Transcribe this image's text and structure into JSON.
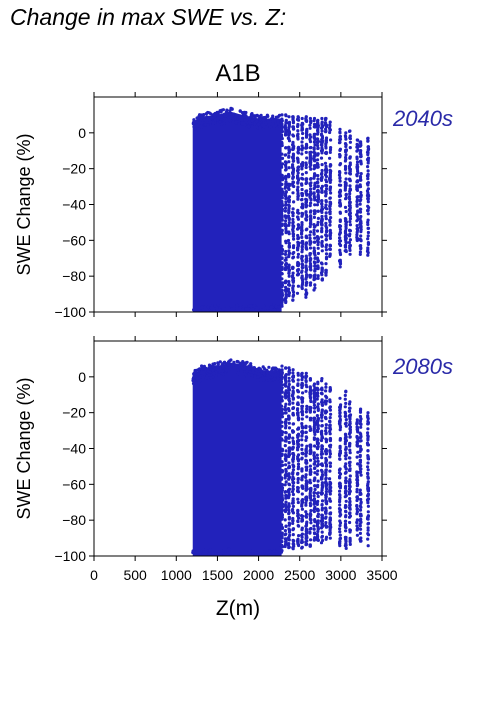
{
  "figure": {
    "title": "Change in max SWE vs. Z:"
  },
  "chart_data": {
    "type": "scatter",
    "scenario": "A1B",
    "xlabel": "Z(m)",
    "ylabel": "SWE Change (%)",
    "xlim": [
      0,
      3500
    ],
    "ylim": [
      -100,
      20
    ],
    "xticks": [
      0,
      500,
      1000,
      1500,
      2000,
      2500,
      3000,
      3500
    ],
    "yticks": [
      -100,
      -80,
      -60,
      -40,
      -20,
      0
    ],
    "point_color": "#2222bb",
    "label_color": "#2a2aa8",
    "panels": [
      {
        "label": "2040s",
        "dense_x_range": [
          1200,
          2280
        ],
        "envelope": [
          [
            1200,
            8
          ],
          [
            1300,
            11
          ],
          [
            1500,
            12
          ],
          [
            1650,
            14
          ],
          [
            1800,
            12
          ],
          [
            2000,
            10
          ],
          [
            2250,
            10
          ],
          [
            2500,
            9
          ],
          [
            2750,
            9
          ]
        ],
        "min_y": -100,
        "columns": [
          {
            "x": 2285,
            "ymin": -97,
            "ymax": 10
          },
          {
            "x": 2330,
            "ymin": -95,
            "ymax": 10
          },
          {
            "x": 2370,
            "ymin": -93,
            "ymax": 9
          },
          {
            "x": 2420,
            "ymin": -95,
            "ymax": 9
          },
          {
            "x": 2480,
            "ymin": -90,
            "ymax": 9
          },
          {
            "x": 2530,
            "ymin": -88,
            "ymax": 8
          },
          {
            "x": 2580,
            "ymin": -92,
            "ymax": 9
          },
          {
            "x": 2630,
            "ymin": -85,
            "ymax": 8
          },
          {
            "x": 2680,
            "ymin": -88,
            "ymax": 8
          },
          {
            "x": 2720,
            "ymin": -82,
            "ymax": 7
          },
          {
            "x": 2770,
            "ymin": -85,
            "ymax": 8
          },
          {
            "x": 2820,
            "ymin": -80,
            "ymax": 8
          },
          {
            "x": 2870,
            "ymin": -70,
            "ymax": 6
          },
          {
            "x": 2990,
            "ymin": -75,
            "ymax": 2
          },
          {
            "x": 3060,
            "ymin": -70,
            "ymax": 0
          },
          {
            "x": 3110,
            "ymin": -68,
            "ymax": 1
          },
          {
            "x": 3200,
            "ymin": -65,
            "ymax": -4
          },
          {
            "x": 3240,
            "ymin": -68,
            "ymax": -5
          },
          {
            "x": 3330,
            "ymin": -70,
            "ymax": -3
          }
        ]
      },
      {
        "label": "2080s",
        "dense_x_range": [
          1200,
          2280
        ],
        "envelope": [
          [
            1200,
            3
          ],
          [
            1300,
            6
          ],
          [
            1500,
            8
          ],
          [
            1650,
            10
          ],
          [
            1800,
            9
          ],
          [
            2000,
            6
          ],
          [
            2250,
            5
          ],
          [
            2500,
            2
          ],
          [
            2750,
            0
          ]
        ],
        "min_y": -100,
        "columns": [
          {
            "x": 2285,
            "ymin": -98,
            "ymax": 6
          },
          {
            "x": 2330,
            "ymin": -97,
            "ymax": 5
          },
          {
            "x": 2370,
            "ymin": -96,
            "ymax": 5
          },
          {
            "x": 2420,
            "ymin": -97,
            "ymax": 4
          },
          {
            "x": 2480,
            "ymin": -95,
            "ymax": 2
          },
          {
            "x": 2530,
            "ymin": -96,
            "ymax": 2
          },
          {
            "x": 2580,
            "ymin": -94,
            "ymax": 2
          },
          {
            "x": 2630,
            "ymin": -95,
            "ymax": -1
          },
          {
            "x": 2680,
            "ymin": -93,
            "ymax": -4
          },
          {
            "x": 2720,
            "ymin": -92,
            "ymax": -3
          },
          {
            "x": 2770,
            "ymin": -94,
            "ymax": -1
          },
          {
            "x": 2820,
            "ymin": -92,
            "ymax": -4
          },
          {
            "x": 2870,
            "ymin": -90,
            "ymax": -6
          },
          {
            "x": 2990,
            "ymin": -95,
            "ymax": -12
          },
          {
            "x": 3060,
            "ymin": -96,
            "ymax": -8
          },
          {
            "x": 3110,
            "ymin": -95,
            "ymax": -14
          },
          {
            "x": 3200,
            "ymin": -90,
            "ymax": -24
          },
          {
            "x": 3240,
            "ymin": -92,
            "ymax": -18
          },
          {
            "x": 3330,
            "ymin": -95,
            "ymax": -20
          }
        ]
      }
    ]
  }
}
